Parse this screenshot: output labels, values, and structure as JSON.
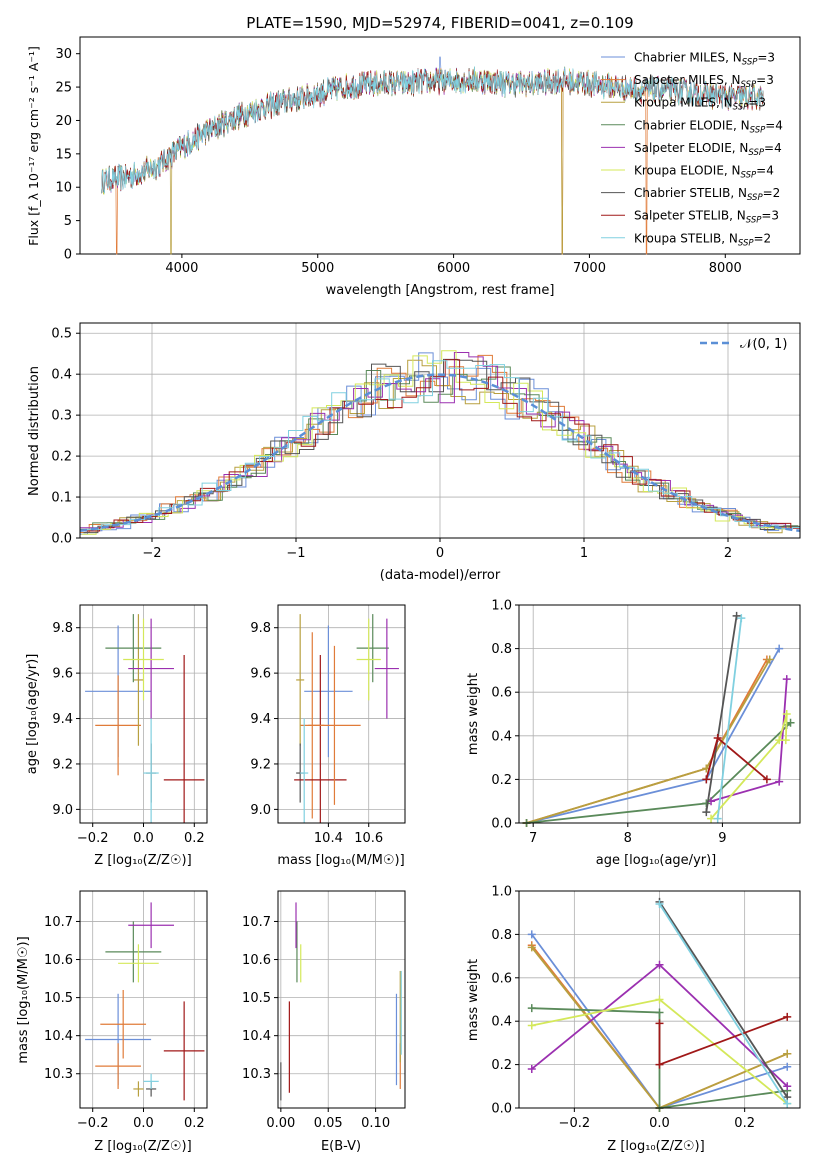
{
  "colors": {
    "chabrier_miles": "#6b8fd8",
    "salpeter_miles": "#e07b39",
    "kroupa_miles": "#b8a040",
    "chabrier_elodie": "#5a8a5a",
    "salpeter_elodie": "#9b30b0",
    "kroupa_elodie": "#d4e85a",
    "chabrier_stelib": "#555555",
    "salpeter_stelib": "#a01818",
    "kroupa_stelib": "#80d0e0"
  },
  "chart_data": [
    {
      "type": "line",
      "title": "PLATE=1590, MJD=52974, FIBERID=0041, z=0.109",
      "xlabel": "wavelength [Angstrom, rest frame]",
      "ylabel": "Flux [f_λ 10⁻¹⁷ erg cm⁻² s⁻¹ A⁻¹]",
      "xlim": [
        3250,
        8550
      ],
      "ylim": [
        0,
        32.5
      ],
      "xticks": [
        "4000",
        "5000",
        "6000",
        "7000",
        "8000"
      ],
      "yticks": [
        "0",
        "5",
        "10",
        "15",
        "20",
        "25",
        "30"
      ],
      "legend_position": "top-right",
      "series": [
        {
          "name": "Chabrier MILES, N_SSP=3",
          "legend_main": "Chabrier MILES, N",
          "legend_sub": "SSP",
          "legend_end": "=3",
          "color_key": "chabrier_miles"
        },
        {
          "name": "Salpeter MILES, N_SSP=3",
          "legend_main": "Salpeter MILES, N",
          "legend_sub": "SSP",
          "legend_end": "=3",
          "color_key": "salpeter_miles"
        },
        {
          "name": "Kroupa MILES, N_SSP=3",
          "legend_main": "Kroupa MILES, N",
          "legend_sub": "SSP",
          "legend_end": "=3",
          "color_key": "kroupa_miles"
        },
        {
          "name": "Chabrier ELODIE, N_SSP=4",
          "legend_main": "Chabrier ELODIE, N",
          "legend_sub": "SSP",
          "legend_end": "=4",
          "color_key": "chabrier_elodie"
        },
        {
          "name": "Salpeter ELODIE, N_SSP=4",
          "legend_main": "Salpeter ELODIE, N",
          "legend_sub": "SSP",
          "legend_end": "=4",
          "color_key": "salpeter_elodie"
        },
        {
          "name": "Kroupa ELODIE, N_SSP=4",
          "legend_main": "Kroupa ELODIE, N",
          "legend_sub": "SSP",
          "legend_end": "=4",
          "color_key": "kroupa_elodie"
        },
        {
          "name": "Chabrier STELIB, N_SSP=2",
          "legend_main": "Chabrier STELIB, N",
          "legend_sub": "SSP",
          "legend_end": "=2",
          "color_key": "chabrier_stelib"
        },
        {
          "name": "Salpeter STELIB, N_SSP=3",
          "legend_main": "Salpeter STELIB, N",
          "legend_sub": "SSP",
          "legend_end": "=3",
          "color_key": "salpeter_stelib"
        },
        {
          "name": "Kroupa STELIB, N_SSP=2",
          "legend_main": "Kroupa STELIB, N",
          "legend_sub": "SSP",
          "legend_end": "=2",
          "color_key": "kroupa_stelib"
        }
      ],
      "spectrum": {
        "x_start": 3410,
        "x_end": 8280,
        "trend_x": [
          3410,
          3600,
          3800,
          4000,
          4200,
          4400,
          4600,
          4800,
          5000,
          5200,
          5400,
          5600,
          5800,
          6000,
          6200,
          6400,
          6600,
          6800,
          7000,
          7200,
          7400,
          7600,
          7800,
          8000,
          8280
        ],
        "trend_y": [
          11,
          11.5,
          13,
          16,
          18.5,
          20.5,
          22,
          23,
          24,
          25,
          25.5,
          25.5,
          25.8,
          26,
          26,
          25.5,
          25.5,
          26,
          25.5,
          25,
          24.5,
          24.5,
          24,
          23.5,
          23.5
        ],
        "spikes_to_zero": [
          3520,
          3920,
          6800,
          7420
        ],
        "spike_up": [
          5900,
          29.5
        ]
      }
    },
    {
      "type": "line",
      "xlabel": "(data-model)/error",
      "ylabel": "Normed distribution",
      "xlim": [
        -2.5,
        2.5
      ],
      "ylim": [
        0,
        0.525
      ],
      "xticks": [
        "−2",
        "−1",
        "0",
        "1",
        "2"
      ],
      "yticks": [
        "0.0",
        "0.1",
        "0.2",
        "0.3",
        "0.4",
        "0.5"
      ],
      "grid": true,
      "legend": "𝒩(0, 1)",
      "legend_position": "top-right",
      "bin_width": 0.1
    },
    {
      "type": "scatter",
      "xlabel": "Z [log₁₀(Z/Z☉)]",
      "ylabel": "age [log₁₀(age/yr)]",
      "xlim": [
        -0.25,
        0.25
      ],
      "ylim": [
        8.94,
        9.9
      ],
      "xticks": [
        "−0.2",
        "0.0",
        "0.2"
      ],
      "yticks": [
        "9.0",
        "9.2",
        "9.4",
        "9.6",
        "9.8"
      ],
      "grid": true,
      "points": [
        {
          "series": "chabrier_miles",
          "x": -0.1,
          "xerr": 0.13,
          "y": 9.52,
          "yerr": 0.29
        },
        {
          "series": "salpeter_miles",
          "x": -0.1,
          "xerr": 0.09,
          "y": 9.37,
          "yerr": 0.22
        },
        {
          "series": "kroupa_miles",
          "x": -0.02,
          "xerr": 0.02,
          "y": 9.57,
          "yerr": 0.29
        },
        {
          "series": "chabrier_elodie",
          "x": -0.04,
          "xerr": 0.11,
          "y": 9.71,
          "yerr": 0.15
        },
        {
          "series": "salpeter_elodie",
          "x": 0.03,
          "xerr": 0.09,
          "y": 9.62,
          "yerr": 0.22
        },
        {
          "series": "kroupa_elodie",
          "x": 0.0,
          "xerr": 0.08,
          "y": 9.66,
          "yerr": 0.18
        },
        {
          "series": "chabrier_stelib",
          "x": 0.03,
          "xerr": 0.02,
          "y": 9.16,
          "yerr": 0.13
        },
        {
          "series": "salpeter_stelib",
          "x": 0.16,
          "xerr": 0.08,
          "y": 9.13,
          "yerr": 0.55
        },
        {
          "series": "kroupa_stelib",
          "x": 0.03,
          "xerr": 0.03,
          "y": 9.16,
          "yerr": 0.24
        }
      ]
    },
    {
      "type": "scatter",
      "xlabel": "mass [log₁₀(M/M☉)]",
      "xlim": [
        10.15,
        10.78
      ],
      "ylim": [
        8.94,
        9.9
      ],
      "xticks": [
        "10.4",
        "10.6"
      ],
      "yticks": [
        "9.0",
        "9.2",
        "9.4",
        "9.6",
        "9.8"
      ],
      "grid": true,
      "points": [
        {
          "series": "chabrier_miles",
          "x": 10.4,
          "xerr": 0.12,
          "y": 9.52,
          "yerr": 0.29
        },
        {
          "series": "salpeter_miles",
          "x": 10.32,
          "xerr": 0.06,
          "y": 9.37,
          "yerr": 0.41
        },
        {
          "series": "kroupa_miles",
          "x": 10.26,
          "xerr": 0.02,
          "y": 9.57,
          "yerr": 0.29
        },
        {
          "series": "chabrier_elodie",
          "x": 10.62,
          "xerr": 0.08,
          "y": 9.71,
          "yerr": 0.15
        },
        {
          "series": "salpeter_elodie",
          "x": 10.69,
          "xerr": 0.06,
          "y": 9.62,
          "yerr": 0.22
        },
        {
          "series": "kroupa_elodie",
          "x": 10.6,
          "xerr": 0.06,
          "y": 9.66,
          "yerr": 0.18
        },
        {
          "series": "chabrier_stelib",
          "x": 10.26,
          "xerr": 0.02,
          "y": 9.16,
          "yerr": 0.13
        },
        {
          "series": "salpeter_stelib",
          "x": 10.36,
          "xerr": 0.13,
          "y": 9.13,
          "yerr": 0.55
        },
        {
          "series": "kroupa_stelib",
          "x": 10.28,
          "xerr": 0.02,
          "y": 9.16,
          "yerr": 0.24
        },
        {
          "series": "salpeter_miles",
          "x": 10.43,
          "xerr": 0.13,
          "y": 9.37,
          "yerr": 0.35
        }
      ]
    },
    {
      "type": "line",
      "xlabel": "age [log₁₀(age/yr)]",
      "ylabel": "mass weight",
      "xlim": [
        6.85,
        9.82
      ],
      "ylim": [
        0,
        1.0
      ],
      "xticks": [
        "7",
        "8",
        "9"
      ],
      "yticks": [
        "0.0",
        "0.2",
        "0.4",
        "0.6",
        "0.8",
        "1.0"
      ],
      "grid": true,
      "series": [
        {
          "series": "chabrier_miles",
          "x": [
            6.93,
            8.83,
            9.6
          ],
          "y": [
            0.0,
            0.2,
            0.8
          ]
        },
        {
          "series": "salpeter_miles",
          "x": [
            6.93,
            8.83,
            9.47
          ],
          "y": [
            0.0,
            0.25,
            0.75
          ]
        },
        {
          "series": "kroupa_miles",
          "x": [
            6.93,
            8.83,
            9.5
          ],
          "y": [
            0.0,
            0.25,
            0.75
          ]
        },
        {
          "series": "chabrier_elodie",
          "x": [
            6.93,
            8.83,
            9.72,
            9.68
          ],
          "y": [
            0.0,
            0.09,
            0.46,
            0.45
          ]
        },
        {
          "series": "salpeter_elodie",
          "x": [
            8.88,
            9.6,
            9.68
          ],
          "y": [
            0.1,
            0.19,
            0.66
          ]
        },
        {
          "series": "kroupa_elodie",
          "x": [
            8.88,
            9.6,
            9.68,
            9.67
          ],
          "y": [
            0.02,
            0.38,
            0.5,
            0.38
          ]
        },
        {
          "series": "chabrier_stelib",
          "x": [
            8.83,
            9.15
          ],
          "y": [
            0.05,
            0.95
          ]
        },
        {
          "series": "salpeter_stelib",
          "x": [
            8.83,
            8.95,
            9.47
          ],
          "y": [
            0.2,
            0.39,
            0.2
          ]
        },
        {
          "series": "kroupa_stelib",
          "x": [
            8.95,
            9.2
          ],
          "y": [
            0.02,
            0.94
          ]
        }
      ]
    },
    {
      "type": "scatter",
      "xlabel": "Z [log₁₀(Z/Z☉)]",
      "ylabel": "mass [log₁₀(M/M☉)]",
      "xlim": [
        -0.25,
        0.25
      ],
      "ylim": [
        10.21,
        10.78
      ],
      "xticks": [
        "−0.2",
        "0.0",
        "0.2"
      ],
      "yticks": [
        "10.3",
        "10.4",
        "10.5",
        "10.6",
        "10.7"
      ],
      "grid": true,
      "points": [
        {
          "series": "chabrier_miles",
          "x": -0.1,
          "xerr": 0.13,
          "y": 10.39,
          "yerr": 0.12
        },
        {
          "series": "salpeter_miles",
          "x": -0.1,
          "xerr": 0.09,
          "y": 10.32,
          "yerr": 0.06
        },
        {
          "series": "kroupa_miles",
          "x": -0.02,
          "xerr": 0.02,
          "y": 10.26,
          "yerr": 0.02
        },
        {
          "series": "chabrier_elodie",
          "x": -0.04,
          "xerr": 0.11,
          "y": 10.62,
          "yerr": 0.08
        },
        {
          "series": "salpeter_elodie",
          "x": 0.03,
          "xerr": 0.09,
          "y": 10.69,
          "yerr": 0.06
        },
        {
          "series": "kroupa_elodie",
          "x": -0.02,
          "xerr": 0.08,
          "y": 10.59,
          "yerr": 0.05
        },
        {
          "series": "chabrier_stelib",
          "x": 0.03,
          "xerr": 0.02,
          "y": 10.26,
          "yerr": 0.02
        },
        {
          "series": "salpeter_stelib",
          "x": 0.16,
          "xerr": 0.08,
          "y": 10.36,
          "yerr": 0.13
        },
        {
          "series": "kroupa_stelib",
          "x": 0.03,
          "xerr": 0.03,
          "y": 10.28,
          "yerr": 0.02
        },
        {
          "series": "salpeter_miles",
          "x": -0.08,
          "xerr": 0.09,
          "y": 10.43,
          "yerr": 0.09
        }
      ]
    },
    {
      "type": "scatter",
      "xlabel": "E(B-V)",
      "xlim": [
        -0.003,
        0.131
      ],
      "ylim": [
        10.21,
        10.78
      ],
      "xticks": [
        "0.00",
        "0.05",
        "0.10"
      ],
      "yticks": [
        "10.3",
        "10.4",
        "10.5",
        "10.6",
        "10.7"
      ],
      "grid": true,
      "points": [
        {
          "series": "chabrier_miles",
          "x": 0.122,
          "y": 10.39,
          "yerr": 0.12
        },
        {
          "series": "salpeter_miles",
          "x": 0.126,
          "y": 10.32,
          "yerr": 0.06
        },
        {
          "series": "kroupa_miles",
          "x": 0.126,
          "y": 10.45,
          "yerr": 0.12
        },
        {
          "series": "chabrier_elodie",
          "x": 0.017,
          "y": 10.62,
          "yerr": 0.08
        },
        {
          "series": "salpeter_elodie",
          "x": 0.016,
          "y": 10.69,
          "yerr": 0.06
        },
        {
          "series": "kroupa_elodie",
          "x": 0.021,
          "y": 10.59,
          "yerr": 0.05
        },
        {
          "series": "chabrier_stelib",
          "x": 0.0,
          "y": 10.28,
          "yerr": 0.05
        },
        {
          "series": "salpeter_stelib",
          "x": 0.009,
          "y": 10.37,
          "yerr": 0.12
        },
        {
          "series": "kroupa_stelib",
          "x": 0.127,
          "y": 10.46,
          "yerr": 0.11
        }
      ]
    },
    {
      "type": "line",
      "xlabel": "Z [log₁₀(Z/Z☉)]",
      "ylabel": "mass weight",
      "xlim": [
        -0.33,
        0.33
      ],
      "ylim": [
        0,
        1.0
      ],
      "xticks": [
        "−0.2",
        "0.0",
        "0.2"
      ],
      "yticks": [
        "0.0",
        "0.2",
        "0.4",
        "0.6",
        "0.8",
        "1.0"
      ],
      "grid": true,
      "series": [
        {
          "series": "chabrier_miles",
          "x": [
            -0.3,
            0.0,
            0.3
          ],
          "y": [
            0.8,
            0.0,
            0.19
          ]
        },
        {
          "series": "salpeter_miles",
          "x": [
            -0.3,
            0.0,
            0.3
          ],
          "y": [
            0.75,
            0.0,
            0.25
          ]
        },
        {
          "series": "kroupa_miles",
          "x": [
            -0.3,
            0.0,
            0.3
          ],
          "y": [
            0.74,
            0.0,
            0.25
          ]
        },
        {
          "series": "chabrier_elodie",
          "x": [
            -0.3,
            0.0,
            0.0,
            0.3
          ],
          "y": [
            0.46,
            0.44,
            0.0,
            0.08
          ]
        },
        {
          "series": "salpeter_elodie",
          "x": [
            -0.3,
            0.0,
            0.3
          ],
          "y": [
            0.18,
            0.66,
            0.1
          ]
        },
        {
          "series": "kroupa_elodie",
          "x": [
            -0.3,
            0.0,
            0.3
          ],
          "y": [
            0.38,
            0.5,
            0.02
          ]
        },
        {
          "series": "chabrier_stelib",
          "x": [
            0.0,
            0.3
          ],
          "y": [
            0.95,
            0.05
          ]
        },
        {
          "series": "salpeter_stelib",
          "x": [
            0.0,
            0.0,
            0.3
          ],
          "y": [
            0.39,
            0.2,
            0.42
          ]
        },
        {
          "series": "kroupa_stelib",
          "x": [
            0.0,
            0.3
          ],
          "y": [
            0.94,
            0.02
          ]
        }
      ]
    }
  ]
}
